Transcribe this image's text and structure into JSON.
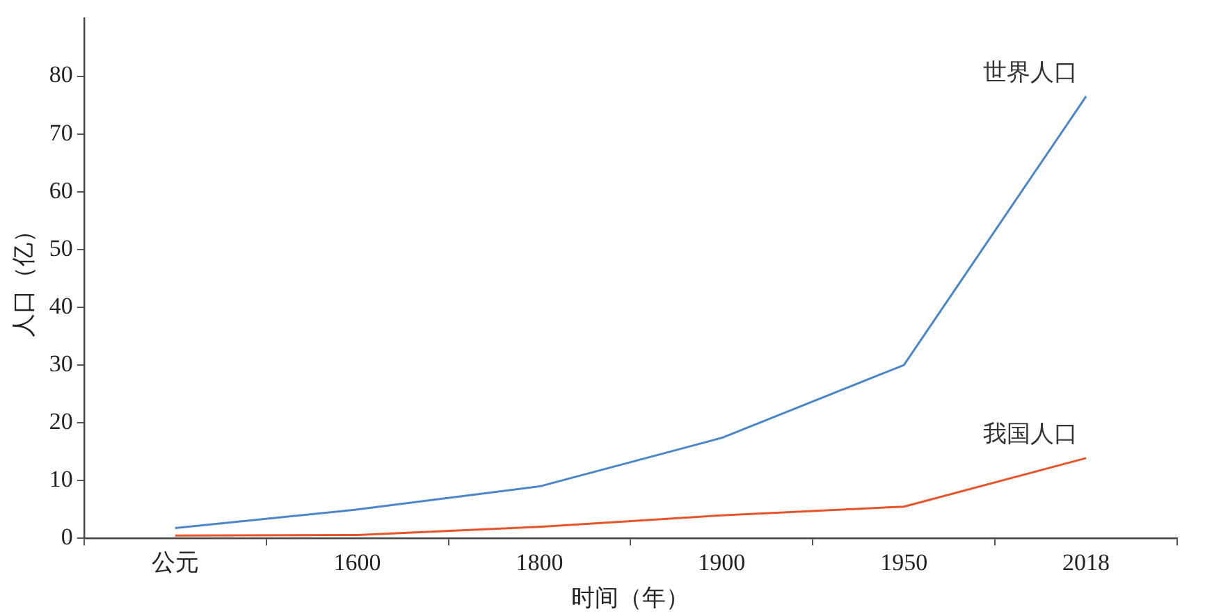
{
  "chart_data": {
    "type": "line",
    "xlabel": "时间（年）",
    "ylabel": "人口（亿）",
    "categories": [
      "公元",
      "1600",
      "1800",
      "1900",
      "1950",
      "2018"
    ],
    "series": [
      {
        "name": "世界人口",
        "color": "#4a86c8",
        "values": [
          1.8,
          5,
          9,
          17.4,
          30,
          76.5
        ]
      },
      {
        "name": "我国人口",
        "color": "#e8542a",
        "values": [
          0.5,
          0.6,
          2,
          4,
          5.5,
          13.9
        ]
      }
    ],
    "ylim": [
      0,
      90
    ],
    "yticks": [
      0,
      10,
      20,
      30,
      40,
      50,
      60,
      70,
      80
    ],
    "grid": false,
    "legend": false,
    "marker": "none",
    "line_style": "solid"
  }
}
